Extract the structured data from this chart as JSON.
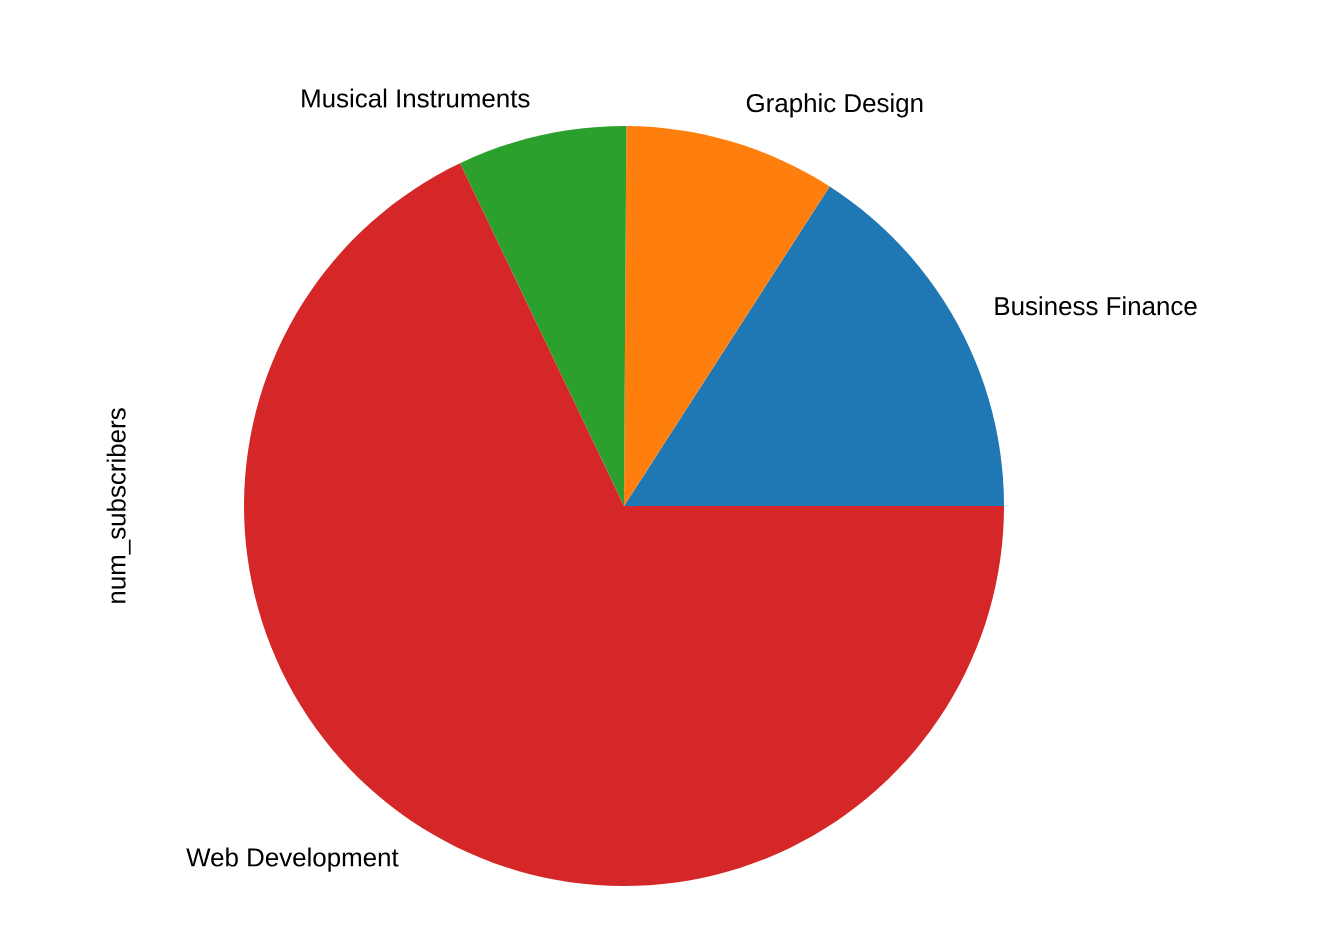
{
  "chart_data": {
    "type": "pie",
    "ylabel": "num_subscribers",
    "categories": [
      "Business Finance",
      "Graphic Design",
      "Musical Instruments",
      "Web Development"
    ],
    "values": [
      15.9,
      9.0,
      7.2,
      67.9
    ],
    "colors": [
      "#1f77b4",
      "#ff7f0e",
      "#2ca02c",
      "#d62728"
    ]
  }
}
